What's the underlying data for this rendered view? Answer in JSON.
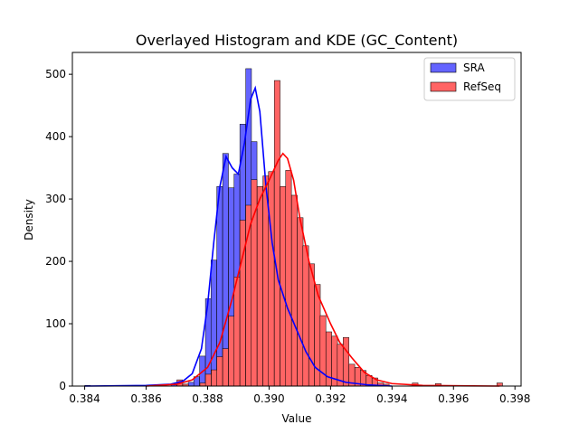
{
  "chart_data": {
    "type": "bar",
    "title": "Overlayed Histogram and KDE (GC_Content)",
    "xlabel": "Value",
    "ylabel": "Density",
    "xlim": [
      0.3836,
      0.3982
    ],
    "ylim": [
      0,
      535
    ],
    "xticks": [
      0.384,
      0.386,
      0.388,
      0.39,
      0.392,
      0.394,
      0.396,
      0.398
    ],
    "xtick_labels": [
      "0.384",
      "0.386",
      "0.388",
      "0.390",
      "0.392",
      "0.394",
      "0.396",
      "0.398"
    ],
    "yticks": [
      0,
      100,
      200,
      300,
      400,
      500
    ],
    "ytick_labels": [
      "0",
      "100",
      "200",
      "300",
      "400",
      "500"
    ],
    "grid": false,
    "legend_position": "top-right",
    "series": [
      {
        "name": "SRA",
        "color": "#0000ff",
        "bar_color": "#6464ff",
        "bin_width": 0.000187,
        "bins": [
          [
            0.384,
            1
          ],
          [
            0.38606,
            1
          ],
          [
            0.38643,
            1
          ],
          [
            0.38681,
            2
          ],
          [
            0.38718,
            3
          ],
          [
            0.38737,
            6
          ],
          [
            0.38755,
            15
          ],
          [
            0.38774,
            48
          ],
          [
            0.38793,
            140
          ],
          [
            0.38811,
            202
          ],
          [
            0.3883,
            320
          ],
          [
            0.38849,
            373
          ],
          [
            0.38868,
            318
          ],
          [
            0.38886,
            340
          ],
          [
            0.38905,
            420
          ],
          [
            0.38924,
            509
          ],
          [
            0.38942,
            392
          ],
          [
            0.38961,
            320
          ],
          [
            0.3898,
            302
          ],
          [
            0.38998,
            220
          ],
          [
            0.39017,
            155
          ],
          [
            0.39036,
            122
          ],
          [
            0.39054,
            94
          ],
          [
            0.39073,
            64
          ],
          [
            0.39092,
            45
          ],
          [
            0.3911,
            40
          ],
          [
            0.39129,
            20
          ],
          [
            0.39148,
            17
          ],
          [
            0.39166,
            13
          ],
          [
            0.39185,
            11
          ],
          [
            0.39204,
            8
          ],
          [
            0.39222,
            4
          ],
          [
            0.39241,
            3
          ],
          [
            0.3926,
            2
          ],
          [
            0.39279,
            1
          ],
          [
            0.39297,
            1
          ]
        ],
        "kde": [
          [
            0.384,
            0
          ],
          [
            0.386,
            1
          ],
          [
            0.3868,
            3
          ],
          [
            0.3872,
            8
          ],
          [
            0.3875,
            20
          ],
          [
            0.3878,
            60
          ],
          [
            0.388,
            130
          ],
          [
            0.3882,
            230
          ],
          [
            0.3884,
            320
          ],
          [
            0.3886,
            368
          ],
          [
            0.3888,
            350
          ],
          [
            0.389,
            340
          ],
          [
            0.3892,
            390
          ],
          [
            0.3894,
            460
          ],
          [
            0.38955,
            478
          ],
          [
            0.3897,
            440
          ],
          [
            0.3899,
            320
          ],
          [
            0.3901,
            230
          ],
          [
            0.3903,
            170
          ],
          [
            0.3906,
            125
          ],
          [
            0.3909,
            90
          ],
          [
            0.3912,
            55
          ],
          [
            0.3915,
            30
          ],
          [
            0.3919,
            15
          ],
          [
            0.3925,
            6
          ],
          [
            0.3932,
            2
          ],
          [
            0.394,
            0
          ]
        ]
      },
      {
        "name": "RefSeq",
        "color": "#ff0000",
        "bar_color": "#ff6464",
        "bin_width": 0.000187,
        "bins": [
          [
            0.387,
            10
          ],
          [
            0.38719,
            3
          ],
          [
            0.38775,
            5
          ],
          [
            0.38793,
            19
          ],
          [
            0.38812,
            26
          ],
          [
            0.3883,
            47
          ],
          [
            0.38849,
            60
          ],
          [
            0.38868,
            112
          ],
          [
            0.38886,
            175
          ],
          [
            0.38905,
            266
          ],
          [
            0.38924,
            290
          ],
          [
            0.38942,
            331
          ],
          [
            0.38961,
            320
          ],
          [
            0.3898,
            337
          ],
          [
            0.38998,
            344
          ],
          [
            0.39017,
            490
          ],
          [
            0.39036,
            320
          ],
          [
            0.39054,
            346
          ],
          [
            0.39073,
            306
          ],
          [
            0.39092,
            270
          ],
          [
            0.3911,
            225
          ],
          [
            0.39129,
            196
          ],
          [
            0.39148,
            163
          ],
          [
            0.39166,
            113
          ],
          [
            0.39185,
            87
          ],
          [
            0.39204,
            80
          ],
          [
            0.39222,
            67
          ],
          [
            0.39241,
            78
          ],
          [
            0.3926,
            35
          ],
          [
            0.39279,
            30
          ],
          [
            0.39297,
            25
          ],
          [
            0.39316,
            17
          ],
          [
            0.39335,
            13
          ],
          [
            0.39354,
            5
          ],
          [
            0.39372,
            3
          ],
          [
            0.39466,
            5
          ],
          [
            0.39541,
            4
          ],
          [
            0.39741,
            5
          ]
        ],
        "kde": [
          [
            0.386,
            0
          ],
          [
            0.387,
            3
          ],
          [
            0.3875,
            10
          ],
          [
            0.388,
            30
          ],
          [
            0.3884,
            70
          ],
          [
            0.3888,
            140
          ],
          [
            0.3891,
            200
          ],
          [
            0.3894,
            260
          ],
          [
            0.3897,
            300
          ],
          [
            0.39,
            330
          ],
          [
            0.3903,
            362
          ],
          [
            0.39045,
            373
          ],
          [
            0.3906,
            365
          ],
          [
            0.3908,
            330
          ],
          [
            0.391,
            270
          ],
          [
            0.3913,
            200
          ],
          [
            0.3916,
            145
          ],
          [
            0.392,
            100
          ],
          [
            0.3923,
            70
          ],
          [
            0.3927,
            45
          ],
          [
            0.3931,
            22
          ],
          [
            0.3935,
            10
          ],
          [
            0.394,
            4
          ],
          [
            0.395,
            1
          ],
          [
            0.3975,
            0
          ]
        ]
      }
    ]
  }
}
